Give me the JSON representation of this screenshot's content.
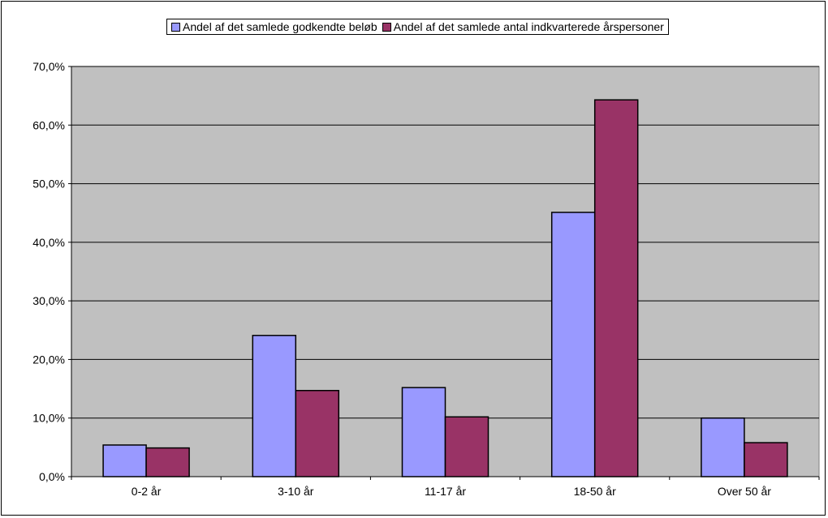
{
  "chart_data": {
    "type": "bar",
    "categories": [
      "0-2 år",
      "3-10 år",
      "11-17 år",
      "18-50 år",
      "Over 50 år"
    ],
    "series": [
      {
        "name": "Andel af det samlede godkendte beløb",
        "color": "#9999ff",
        "values": [
          5.4,
          24.1,
          15.2,
          45.1,
          10.0
        ]
      },
      {
        "name": "Andel af det samlede antal indkvarterede årspersoner",
        "color": "#993366",
        "values": [
          4.9,
          14.7,
          10.2,
          64.3,
          5.8
        ]
      }
    ],
    "ylim": [
      0,
      70
    ],
    "yticks": [
      0,
      10,
      20,
      30,
      40,
      50,
      60,
      70
    ],
    "ytick_labels": [
      "0,0%",
      "10,0%",
      "20,0%",
      "30,0%",
      "40,0%",
      "50,0%",
      "60,0%",
      "70,0%"
    ],
    "grid": true,
    "legend_position": "top",
    "plot_background": "#c0c0c0",
    "title": "",
    "xlabel": "",
    "ylabel": ""
  }
}
